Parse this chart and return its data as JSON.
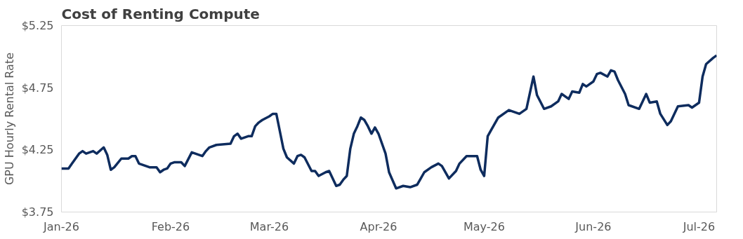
{
  "chart_data": {
    "type": "line",
    "title": "Cost of Renting Compute",
    "ylabel": "GPU Hourly Rental Rate",
    "x": [
      "2026-01-01",
      "2026-01-03",
      "2026-01-04",
      "2026-01-06",
      "2026-01-07",
      "2026-01-08",
      "2026-01-10",
      "2026-01-11",
      "2026-01-13",
      "2026-01-14",
      "2026-01-15",
      "2026-01-16",
      "2026-01-18",
      "2026-01-20",
      "2026-01-21",
      "2026-01-22",
      "2026-01-23",
      "2026-01-26",
      "2026-01-28",
      "2026-01-29",
      "2026-01-30",
      "2026-01-31",
      "2026-02-01",
      "2026-02-02",
      "2026-02-04",
      "2026-02-05",
      "2026-02-07",
      "2026-02-10",
      "2026-02-11",
      "2026-02-12",
      "2026-02-14",
      "2026-02-18",
      "2026-02-19",
      "2026-02-20",
      "2026-02-21",
      "2026-02-23",
      "2026-02-24",
      "2026-02-25",
      "2026-02-26",
      "2026-02-27",
      "2026-03-01",
      "2026-03-02",
      "2026-03-03",
      "2026-03-04",
      "2026-03-05",
      "2026-03-06",
      "2026-03-08",
      "2026-03-09",
      "2026-03-10",
      "2026-03-11",
      "2026-03-13",
      "2026-03-14",
      "2026-03-15",
      "2026-03-17",
      "2026-03-18",
      "2026-03-20",
      "2026-03-21",
      "2026-03-22",
      "2026-03-23",
      "2026-03-24",
      "2026-03-25",
      "2026-03-26",
      "2026-03-27",
      "2026-03-28",
      "2026-03-29",
      "2026-03-30",
      "2026-03-31",
      "2026-04-01",
      "2026-04-03",
      "2026-04-04",
      "2026-04-06",
      "2026-04-08",
      "2026-04-10",
      "2026-04-12",
      "2026-04-14",
      "2026-04-16",
      "2026-04-18",
      "2026-04-19",
      "2026-04-21",
      "2026-04-23",
      "2026-04-24",
      "2026-04-26",
      "2026-04-29",
      "2026-04-30",
      "2026-05-01",
      "2026-05-02",
      "2026-05-03",
      "2026-05-05",
      "2026-05-08",
      "2026-05-11",
      "2026-05-13",
      "2026-05-15",
      "2026-05-16",
      "2026-05-18",
      "2026-05-20",
      "2026-05-22",
      "2026-05-23",
      "2026-05-25",
      "2026-05-26",
      "2026-05-28",
      "2026-05-29",
      "2026-05-30",
      "2026-06-01",
      "2026-06-02",
      "2026-06-03",
      "2026-06-05",
      "2026-06-06",
      "2026-06-07",
      "2026-06-08",
      "2026-06-10",
      "2026-06-11",
      "2026-06-14",
      "2026-06-16",
      "2026-06-17",
      "2026-06-19",
      "2026-06-20",
      "2026-06-22",
      "2026-06-23",
      "2026-06-25",
      "2026-06-28",
      "2026-06-29",
      "2026-07-01",
      "2026-07-02",
      "2026-07-03",
      "2026-07-05",
      "2026-07-06"
    ],
    "series": [
      {
        "color": "#0e2c5e",
        "values": [
          4.1,
          4.1,
          4.14,
          4.22,
          4.24,
          4.22,
          4.24,
          4.22,
          4.27,
          4.21,
          4.09,
          4.11,
          4.18,
          4.18,
          4.2,
          4.2,
          4.14,
          4.11,
          4.11,
          4.07,
          4.09,
          4.1,
          4.14,
          4.15,
          4.15,
          4.12,
          4.23,
          4.2,
          4.24,
          4.27,
          4.29,
          4.3,
          4.36,
          4.38,
          4.34,
          4.36,
          4.36,
          4.44,
          4.47,
          4.49,
          4.52,
          4.54,
          4.54,
          4.4,
          4.26,
          4.19,
          4.14,
          4.2,
          4.21,
          4.19,
          4.08,
          4.08,
          4.04,
          4.07,
          4.08,
          3.96,
          3.97,
          4.01,
          4.04,
          4.26,
          4.38,
          4.44,
          4.51,
          4.49,
          4.44,
          4.38,
          4.43,
          4.38,
          4.22,
          4.07,
          3.94,
          3.96,
          3.95,
          3.97,
          4.07,
          4.11,
          4.14,
          4.12,
          4.02,
          4.08,
          4.14,
          4.2,
          4.2,
          4.09,
          4.04,
          4.36,
          4.41,
          4.51,
          4.57,
          4.54,
          4.58,
          4.84,
          4.69,
          4.58,
          4.6,
          4.64,
          4.7,
          4.66,
          4.72,
          4.71,
          4.78,
          4.76,
          4.8,
          4.86,
          4.87,
          4.84,
          4.89,
          4.88,
          4.81,
          4.7,
          4.61,
          4.58,
          4.7,
          4.63,
          4.64,
          4.54,
          4.45,
          4.48,
          4.6,
          4.61,
          4.59,
          4.63,
          4.84,
          4.94,
          4.99,
          5.01
        ]
      }
    ],
    "xlim": [
      "2026-01-01",
      "2026-07-06"
    ],
    "xticks": [
      {
        "value": "2026-01-01",
        "label": "Jan-26"
      },
      {
        "value": "2026-02-01",
        "label": "Feb-26"
      },
      {
        "value": "2026-03-01",
        "label": "Mar-26"
      },
      {
        "value": "2026-04-01",
        "label": "Apr-26"
      },
      {
        "value": "2026-05-01",
        "label": "May-26"
      },
      {
        "value": "2026-06-01",
        "label": "Jun-26"
      },
      {
        "value": "2026-07-01",
        "label": "Jul-26"
      }
    ],
    "ylim": [
      3.75,
      5.25
    ],
    "yticks": [
      {
        "value": 3.75,
        "label": "$3.75"
      },
      {
        "value": 4.25,
        "label": "$4.25"
      },
      {
        "value": 4.75,
        "label": "$4.75"
      },
      {
        "value": 5.25,
        "label": "$5.25"
      }
    ],
    "grid": false,
    "line_style": "solid"
  }
}
